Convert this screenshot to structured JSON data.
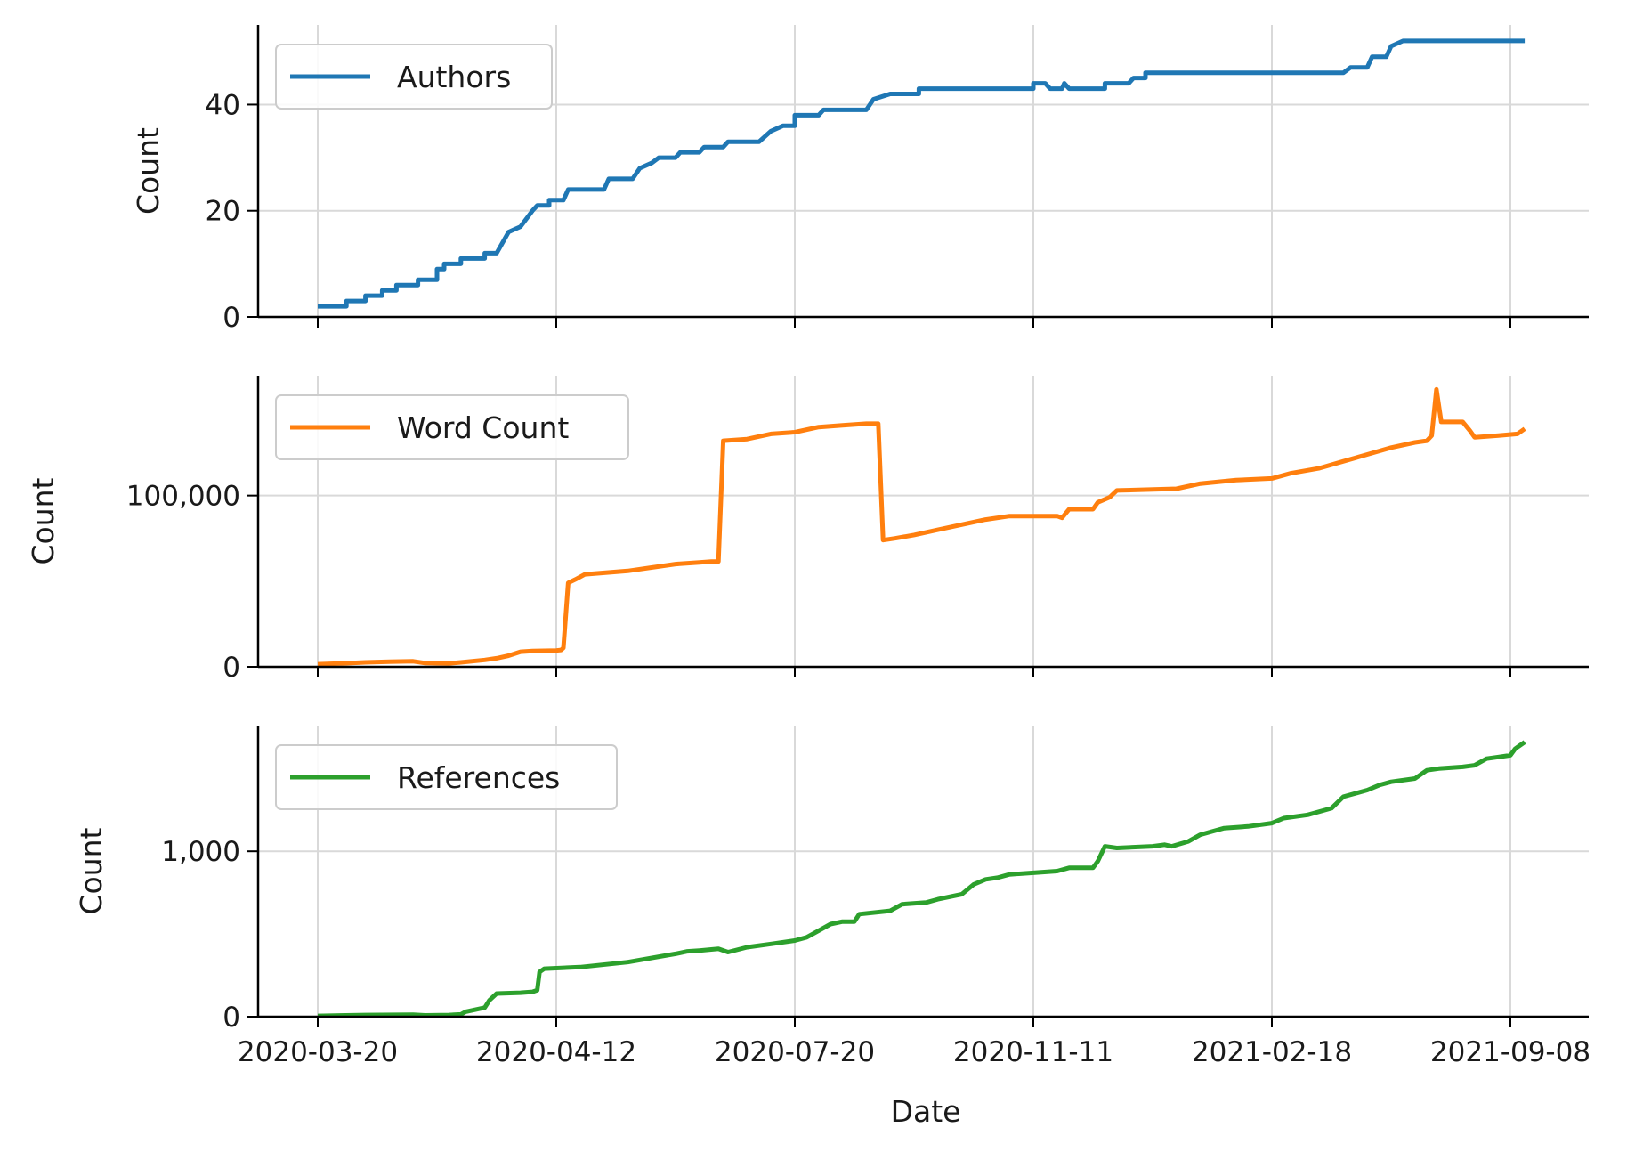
{
  "chart_data": {
    "type": "line",
    "x_label": "Date",
    "x_tick_labels": [
      "2020-03-20",
      "2020-04-12",
      "2020-07-20",
      "2020-11-11",
      "2021-02-18",
      "2021-09-08"
    ],
    "grid": true,
    "legend_placement": "upper-left",
    "x_note": "x values are positions on the x axis, where 0 is the first labelled tick (2020-03-20) and 5 is the last (2021-09-08)",
    "panels": [
      {
        "name": "Authors",
        "color": "#1f77b4",
        "y_label": "Count",
        "y_ticks": [
          0,
          20,
          40
        ],
        "y_tick_labels": [
          "0",
          "20",
          "40"
        ],
        "ylim": [
          0,
          55
        ],
        "points": [
          [
            0.0,
            2
          ],
          [
            0.12,
            2
          ],
          [
            0.12,
            3
          ],
          [
            0.2,
            3
          ],
          [
            0.2,
            4
          ],
          [
            0.27,
            4
          ],
          [
            0.27,
            5
          ],
          [
            0.33,
            5
          ],
          [
            0.33,
            6
          ],
          [
            0.42,
            6
          ],
          [
            0.42,
            7
          ],
          [
            0.5,
            7
          ],
          [
            0.5,
            9
          ],
          [
            0.53,
            9
          ],
          [
            0.53,
            10
          ],
          [
            0.6,
            10
          ],
          [
            0.6,
            11
          ],
          [
            0.7,
            11
          ],
          [
            0.7,
            12
          ],
          [
            0.75,
            12
          ],
          [
            0.8,
            16
          ],
          [
            0.85,
            17
          ],
          [
            0.9,
            20
          ],
          [
            0.92,
            21
          ],
          [
            0.97,
            21
          ],
          [
            0.97,
            22
          ],
          [
            1.03,
            22
          ],
          [
            1.05,
            24
          ],
          [
            1.2,
            24
          ],
          [
            1.22,
            26
          ],
          [
            1.32,
            26
          ],
          [
            1.35,
            28
          ],
          [
            1.4,
            29
          ],
          [
            1.43,
            30
          ],
          [
            1.5,
            30
          ],
          [
            1.52,
            31
          ],
          [
            1.6,
            31
          ],
          [
            1.62,
            32
          ],
          [
            1.7,
            32
          ],
          [
            1.72,
            33
          ],
          [
            1.85,
            33
          ],
          [
            1.9,
            35
          ],
          [
            1.95,
            36
          ],
          [
            2.0,
            36
          ],
          [
            2.0,
            38
          ],
          [
            2.1,
            38
          ],
          [
            2.12,
            39
          ],
          [
            2.3,
            39
          ],
          [
            2.33,
            41
          ],
          [
            2.4,
            42
          ],
          [
            2.52,
            42
          ],
          [
            2.52,
            43
          ],
          [
            3.0,
            43
          ],
          [
            3.0,
            44
          ],
          [
            3.05,
            44
          ],
          [
            3.07,
            43
          ],
          [
            3.12,
            43
          ],
          [
            3.13,
            44
          ],
          [
            3.15,
            43
          ],
          [
            3.3,
            43
          ],
          [
            3.3,
            44
          ],
          [
            3.4,
            44
          ],
          [
            3.42,
            45
          ],
          [
            3.47,
            45
          ],
          [
            3.47,
            46
          ],
          [
            4.3,
            46
          ],
          [
            4.33,
            47
          ],
          [
            4.4,
            47
          ],
          [
            4.42,
            49
          ],
          [
            4.48,
            49
          ],
          [
            4.5,
            51
          ],
          [
            4.55,
            52
          ],
          [
            5.06,
            52
          ]
        ]
      },
      {
        "name": "Word Count",
        "color": "#ff7f0e",
        "y_label": "Count",
        "y_ticks": [
          0,
          100000
        ],
        "y_tick_labels": [
          "0",
          "100,000"
        ],
        "ylim": [
          0,
          170000
        ],
        "points": [
          [
            0.0,
            1500
          ],
          [
            0.1,
            2000
          ],
          [
            0.2,
            2600
          ],
          [
            0.3,
            3000
          ],
          [
            0.4,
            3200
          ],
          [
            0.45,
            2200
          ],
          [
            0.55,
            2000
          ],
          [
            0.6,
            2600
          ],
          [
            0.7,
            4000
          ],
          [
            0.75,
            5000
          ],
          [
            0.8,
            6500
          ],
          [
            0.85,
            8800
          ],
          [
            0.9,
            9200
          ],
          [
            1.0,
            9500
          ],
          [
            1.02,
            9800
          ],
          [
            1.03,
            11000
          ],
          [
            1.05,
            49000
          ],
          [
            1.08,
            51000
          ],
          [
            1.12,
            54000
          ],
          [
            1.3,
            56000
          ],
          [
            1.5,
            60000
          ],
          [
            1.6,
            61000
          ],
          [
            1.65,
            61500
          ],
          [
            1.68,
            61500
          ],
          [
            1.7,
            132000
          ],
          [
            1.8,
            133000
          ],
          [
            1.9,
            136000
          ],
          [
            2.0,
            137000
          ],
          [
            2.1,
            140000
          ],
          [
            2.2,
            141000
          ],
          [
            2.3,
            142000
          ],
          [
            2.35,
            142000
          ],
          [
            2.37,
            74000
          ],
          [
            2.42,
            75000
          ],
          [
            2.5,
            77000
          ],
          [
            2.6,
            80000
          ],
          [
            2.7,
            83000
          ],
          [
            2.8,
            86000
          ],
          [
            2.9,
            88000
          ],
          [
            3.0,
            88000
          ],
          [
            3.1,
            88000
          ],
          [
            3.12,
            87000
          ],
          [
            3.15,
            92000
          ],
          [
            3.25,
            92000
          ],
          [
            3.27,
            96000
          ],
          [
            3.32,
            99000
          ],
          [
            3.35,
            103000
          ],
          [
            3.6,
            104000
          ],
          [
            3.7,
            107000
          ],
          [
            3.85,
            109000
          ],
          [
            4.0,
            110000
          ],
          [
            4.08,
            113000
          ],
          [
            4.2,
            116000
          ],
          [
            4.3,
            120000
          ],
          [
            4.4,
            124000
          ],
          [
            4.5,
            128000
          ],
          [
            4.6,
            131000
          ],
          [
            4.65,
            132000
          ],
          [
            4.67,
            135000
          ],
          [
            4.69,
            162000
          ],
          [
            4.71,
            143000
          ],
          [
            4.8,
            143000
          ],
          [
            4.83,
            138000
          ],
          [
            4.85,
            134000
          ],
          [
            4.95,
            135000
          ],
          [
            5.03,
            136000
          ],
          [
            5.06,
            139000
          ]
        ]
      },
      {
        "name": "References",
        "color": "#2ca02c",
        "y_label": "Count",
        "y_ticks": [
          0,
          1000
        ],
        "y_tick_labels": [
          "0",
          "1,000"
        ],
        "ylim": [
          0,
          1760
        ],
        "points": [
          [
            0.0,
            5
          ],
          [
            0.2,
            10
          ],
          [
            0.4,
            12
          ],
          [
            0.45,
            8
          ],
          [
            0.55,
            10
          ],
          [
            0.6,
            14
          ],
          [
            0.62,
            30
          ],
          [
            0.7,
            55
          ],
          [
            0.72,
            100
          ],
          [
            0.75,
            140
          ],
          [
            0.85,
            145
          ],
          [
            0.9,
            150
          ],
          [
            0.92,
            160
          ],
          [
            0.93,
            270
          ],
          [
            0.95,
            290
          ],
          [
            1.1,
            300
          ],
          [
            1.3,
            330
          ],
          [
            1.5,
            380
          ],
          [
            1.55,
            395
          ],
          [
            1.6,
            400
          ],
          [
            1.68,
            410
          ],
          [
            1.72,
            390
          ],
          [
            1.8,
            420
          ],
          [
            1.9,
            440
          ],
          [
            2.0,
            460
          ],
          [
            2.05,
            480
          ],
          [
            2.1,
            520
          ],
          [
            2.15,
            560
          ],
          [
            2.2,
            575
          ],
          [
            2.25,
            575
          ],
          [
            2.27,
            620
          ],
          [
            2.4,
            640
          ],
          [
            2.45,
            680
          ],
          [
            2.55,
            690
          ],
          [
            2.6,
            710
          ],
          [
            2.7,
            740
          ],
          [
            2.75,
            800
          ],
          [
            2.8,
            830
          ],
          [
            2.85,
            840
          ],
          [
            2.9,
            860
          ],
          [
            3.0,
            870
          ],
          [
            3.1,
            880
          ],
          [
            3.15,
            900
          ],
          [
            3.25,
            900
          ],
          [
            3.27,
            940
          ],
          [
            3.3,
            1030
          ],
          [
            3.35,
            1020
          ],
          [
            3.5,
            1030
          ],
          [
            3.55,
            1040
          ],
          [
            3.58,
            1030
          ],
          [
            3.65,
            1060
          ],
          [
            3.7,
            1100
          ],
          [
            3.75,
            1120
          ],
          [
            3.8,
            1140
          ],
          [
            3.9,
            1150
          ],
          [
            4.0,
            1170
          ],
          [
            4.05,
            1200
          ],
          [
            4.15,
            1220
          ],
          [
            4.25,
            1260
          ],
          [
            4.3,
            1330
          ],
          [
            4.35,
            1350
          ],
          [
            4.4,
            1370
          ],
          [
            4.45,
            1400
          ],
          [
            4.5,
            1420
          ],
          [
            4.6,
            1440
          ],
          [
            4.65,
            1490
          ],
          [
            4.7,
            1500
          ],
          [
            4.8,
            1510
          ],
          [
            4.85,
            1520
          ],
          [
            4.9,
            1560
          ],
          [
            4.95,
            1570
          ],
          [
            5.0,
            1580
          ],
          [
            5.02,
            1620
          ],
          [
            5.04,
            1640
          ],
          [
            5.06,
            1660
          ]
        ]
      }
    ]
  }
}
